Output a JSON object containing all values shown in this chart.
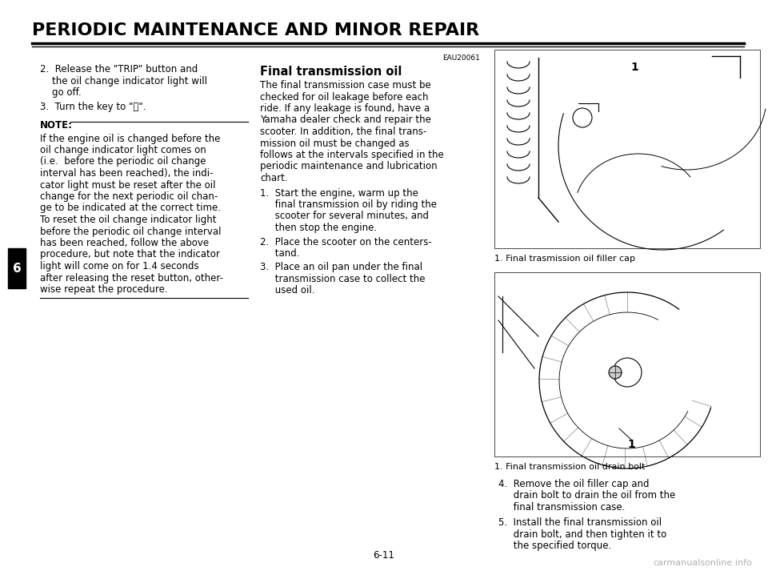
{
  "title": "PERIODIC MAINTENANCE AND MINOR REPAIR",
  "page_number": "6-11",
  "chapter_number": "6",
  "background_color": "#ffffff",
  "title_color": "#000000",
  "text_color": "#000000",
  "watermark_color": "#b0b0b0",
  "watermark_text": "carmanualsonline.info",
  "fs_body": 8.5,
  "fs_title": 16,
  "fs_note": 8.5,
  "step2_lines": [
    "2.  Release the \"TRIP\" button and",
    "    the oil change indicator light will",
    "    go off."
  ],
  "step3_line": "3.  Turn the key to \"⒧\".",
  "note_title": "NOTE:",
  "note_lines": [
    "If the engine oil is changed before the",
    "oil change indicator light comes on",
    "(i.e.  before the periodic oil change",
    "interval has been reached), the indi-",
    "cator light must be reset after the oil",
    "change for the next periodic oil chan-",
    "ge to be indicated at the correct time.",
    "To reset the oil change indicator light",
    "before the periodic oil change interval",
    "has been reached, follow the above",
    "procedure, but note that the indicator",
    "light will come on for 1.4 seconds",
    "after releasing the reset button, other-",
    "wise repeat the procedure."
  ],
  "eau_code": "EAU20061",
  "section_title": "Final transmission oil",
  "section_lines": [
    "The final transmission case must be",
    "checked for oil leakage before each",
    "ride. If any leakage is found, have a",
    "Yamaha dealer check and repair the",
    "scooter. In addition, the final trans-",
    "mission oil must be changed as",
    "follows at the intervals specified in the",
    "periodic maintenance and lubrication",
    "chart."
  ],
  "mid_step1_lines": [
    "1.  Start the engine, warm up the",
    "     final transmission oil by riding the",
    "     scooter for several minutes, and",
    "     then stop the engine."
  ],
  "mid_step2_lines": [
    "2.  Place the scooter on the centers-",
    "     tand."
  ],
  "mid_step3_lines": [
    "3.  Place an oil pan under the final",
    "     transmission case to collect the",
    "     used oil."
  ],
  "img1_caption": "1. Final trasmission oil filler cap",
  "img2_caption": "1. Final transmission oil drain bolt",
  "step4_lines": [
    "4.  Remove the oil filler cap and",
    "     drain bolt to drain the oil from the",
    "     final transmission case."
  ],
  "step5_lines": [
    "5.  Install the final transmission oil",
    "     drain bolt, and then tighten it to",
    "     the specified torque."
  ]
}
